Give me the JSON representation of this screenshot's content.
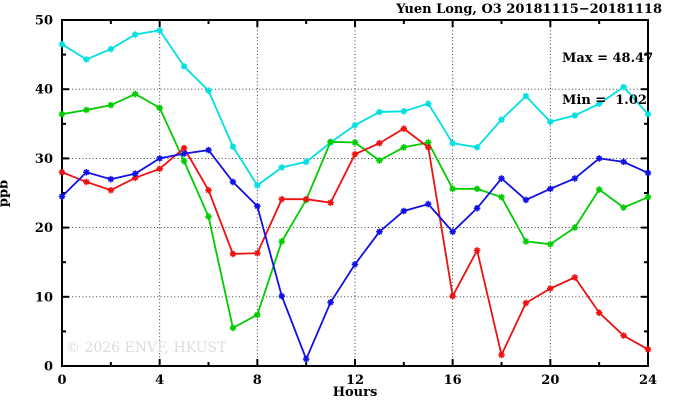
{
  "window": {
    "title": "Yuen Long, O3 20181115−20181118"
  },
  "chart_data": {
    "type": "line",
    "title": "Yuen Long, O3 20181115−20181118",
    "xlabel": "Hours",
    "ylabel": "ppb",
    "xlim": [
      0,
      24
    ],
    "ylim": [
      0,
      50
    ],
    "grid": true,
    "legend_position": "none",
    "x_major_ticks": [
      0,
      4,
      8,
      12,
      16,
      20,
      24
    ],
    "x_minor_ticks": [
      2,
      6,
      10,
      14,
      18,
      22
    ],
    "y_major_ticks": [
      0,
      10,
      20,
      30,
      40,
      50
    ],
    "y_minor_ticks": [
      5,
      15,
      25,
      35,
      45
    ],
    "x": [
      0,
      1,
      2,
      3,
      4,
      5,
      6,
      7,
      8,
      9,
      10,
      11,
      12,
      13,
      14,
      15,
      16,
      17,
      18,
      19,
      20,
      21,
      22,
      23,
      24
    ],
    "series": [
      {
        "name": "cyan-series",
        "color": "#00e0e0",
        "values": [
          46.5,
          44.3,
          45.8,
          47.9,
          48.5,
          43.3,
          39.8,
          31.7,
          26.1,
          28.7,
          29.5,
          32.3,
          34.8,
          36.7,
          36.8,
          37.9,
          32.2,
          31.6,
          35.6,
          39.0,
          35.3,
          36.2,
          37.9,
          40.3,
          36.4
        ]
      },
      {
        "name": "green-series",
        "color": "#00cc00",
        "values": [
          36.4,
          37.0,
          37.7,
          39.3,
          37.3,
          29.6,
          21.6,
          5.5,
          7.4,
          18.0,
          24.0,
          32.4,
          32.3,
          29.7,
          31.6,
          32.3,
          25.6,
          25.6,
          24.4,
          18.0,
          17.6,
          20.0,
          25.5,
          22.9,
          24.4
        ]
      },
      {
        "name": "red-series",
        "color": "#ee1111",
        "values": [
          28.0,
          26.6,
          25.4,
          27.2,
          28.5,
          31.5,
          25.4,
          16.2,
          16.3,
          24.1,
          24.1,
          23.6,
          30.6,
          32.2,
          34.3,
          31.6,
          10.1,
          16.7,
          1.6,
          9.1,
          11.2,
          12.8,
          7.7,
          4.4,
          2.4
        ]
      },
      {
        "name": "blue-series",
        "color": "#1111e6",
        "values": [
          24.5,
          28.0,
          27.0,
          27.8,
          30.0,
          30.7,
          31.2,
          26.6,
          23.1,
          10.1,
          1.0,
          9.2,
          14.7,
          19.4,
          22.4,
          23.4,
          19.4,
          22.8,
          27.1,
          24.0,
          25.6,
          27.1,
          30.0,
          29.5,
          27.9
        ]
      }
    ],
    "stats": {
      "max": 48.47,
      "min": 1.02
    },
    "annotations": {
      "max_label": "Max = 48.47",
      "min_label": "Min =  1.02"
    },
    "watermark": "© 2026 ENVF, HKUST"
  }
}
